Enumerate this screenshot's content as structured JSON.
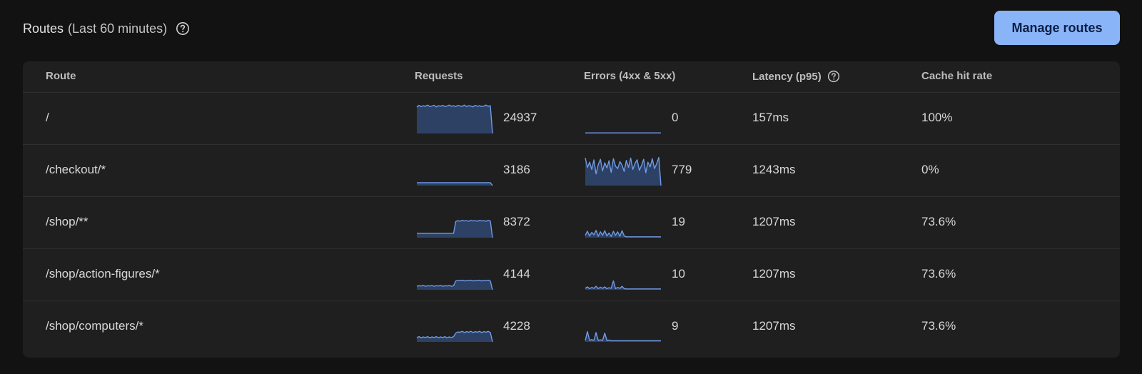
{
  "header": {
    "title": "Routes",
    "subtitle": "(Last 60 minutes)",
    "help_icon": "help-circle-icon",
    "manage_button": "Manage routes"
  },
  "colors": {
    "background": "#121212",
    "card": "#1f1f1f",
    "accent": "#8ab4f8",
    "spark_line": "#6f9be8",
    "spark_fill": "#2d4165"
  },
  "table": {
    "columns": [
      "Route",
      "Requests",
      "Errors (4xx & 5xx)",
      "Latency (p95)",
      "Cache hit rate"
    ],
    "latency_help_icon": "help-circle-icon",
    "rows": [
      {
        "route": "/",
        "requests": "24937",
        "errors": "0",
        "latency": "157ms",
        "cache_hit_rate": "100%",
        "requests_trend": [
          0.9,
          0.96,
          0.92,
          0.95,
          0.93,
          0.97,
          0.92,
          0.94,
          0.96,
          0.91,
          0.95,
          0.93,
          0.96,
          0.92,
          0.94,
          0.97,
          0.93,
          0.95,
          0.92,
          0.96,
          0.94,
          0.93,
          0.97,
          0.92,
          0.95,
          0.94,
          0.91,
          0.96,
          0.93,
          0.95,
          0.92,
          0.94,
          0.97,
          0.93,
          0.95,
          0.0
        ],
        "errors_trend": [
          0.02,
          0.02,
          0.02,
          0.02,
          0.02,
          0.02,
          0.02,
          0.02,
          0.02,
          0.02,
          0.02,
          0.02,
          0.02,
          0.02,
          0.02,
          0.02,
          0.02,
          0.02,
          0.02,
          0.02,
          0.02,
          0.02,
          0.02,
          0.02,
          0.02,
          0.02,
          0.02,
          0.02,
          0.02,
          0.02,
          0.02,
          0.02,
          0.02,
          0.02,
          0.02,
          0.02
        ]
      },
      {
        "route": "/checkout/*",
        "requests": "3186",
        "errors": "779",
        "latency": "1243ms",
        "cache_hit_rate": "0%",
        "requests_trend": [
          0.1,
          0.1,
          0.1,
          0.1,
          0.1,
          0.1,
          0.1,
          0.1,
          0.1,
          0.1,
          0.1,
          0.1,
          0.1,
          0.1,
          0.1,
          0.1,
          0.1,
          0.1,
          0.1,
          0.1,
          0.1,
          0.1,
          0.1,
          0.1,
          0.1,
          0.1,
          0.1,
          0.1,
          0.1,
          0.1,
          0.1,
          0.1,
          0.1,
          0.1,
          0.1,
          0.0
        ],
        "errors_trend": [
          0.95,
          0.62,
          0.8,
          0.55,
          0.88,
          0.4,
          0.72,
          0.9,
          0.5,
          0.78,
          0.6,
          0.85,
          0.45,
          0.92,
          0.66,
          0.58,
          0.82,
          0.7,
          0.48,
          0.86,
          0.62,
          0.94,
          0.55,
          0.76,
          0.88,
          0.52,
          0.68,
          0.9,
          0.44,
          0.8,
          0.64,
          0.92,
          0.58,
          0.74,
          0.96,
          0.0
        ]
      },
      {
        "route": "/shop/**",
        "requests": "8372",
        "errors": "19",
        "latency": "1207ms",
        "cache_hit_rate": "73.6%",
        "requests_trend": [
          0.15,
          0.15,
          0.15,
          0.15,
          0.15,
          0.15,
          0.15,
          0.15,
          0.15,
          0.15,
          0.15,
          0.15,
          0.15,
          0.15,
          0.15,
          0.15,
          0.15,
          0.15,
          0.55,
          0.58,
          0.56,
          0.59,
          0.57,
          0.58,
          0.56,
          0.59,
          0.57,
          0.58,
          0.56,
          0.59,
          0.57,
          0.58,
          0.56,
          0.59,
          0.57,
          0.0
        ],
        "errors_trend": [
          0.08,
          0.22,
          0.06,
          0.18,
          0.1,
          0.25,
          0.05,
          0.2,
          0.08,
          0.24,
          0.06,
          0.16,
          0.04,
          0.22,
          0.08,
          0.2,
          0.05,
          0.24,
          0.06,
          0.03,
          0.03,
          0.03,
          0.03,
          0.03,
          0.03,
          0.03,
          0.03,
          0.03,
          0.03,
          0.03,
          0.03,
          0.03,
          0.03,
          0.03,
          0.03,
          0.03
        ]
      },
      {
        "route": "/shop/action-figures/*",
        "requests": "4144",
        "errors": "10",
        "latency": "1207ms",
        "cache_hit_rate": "73.6%",
        "requests_trend": [
          0.12,
          0.14,
          0.13,
          0.15,
          0.12,
          0.14,
          0.13,
          0.15,
          0.12,
          0.14,
          0.13,
          0.15,
          0.12,
          0.14,
          0.13,
          0.15,
          0.12,
          0.14,
          0.3,
          0.32,
          0.31,
          0.33,
          0.3,
          0.32,
          0.31,
          0.33,
          0.3,
          0.32,
          0.31,
          0.33,
          0.3,
          0.32,
          0.31,
          0.33,
          0.3,
          0.0
        ],
        "errors_trend": [
          0.05,
          0.1,
          0.04,
          0.08,
          0.05,
          0.12,
          0.04,
          0.09,
          0.05,
          0.1,
          0.04,
          0.07,
          0.05,
          0.3,
          0.04,
          0.08,
          0.05,
          0.12,
          0.04,
          0.03,
          0.03,
          0.03,
          0.03,
          0.03,
          0.03,
          0.03,
          0.03,
          0.03,
          0.03,
          0.03,
          0.03,
          0.03,
          0.03,
          0.03,
          0.03,
          0.03
        ]
      },
      {
        "route": "/shop/computers/*",
        "requests": "4228",
        "errors": "9",
        "latency": "1207ms",
        "cache_hit_rate": "73.6%",
        "requests_trend": [
          0.15,
          0.18,
          0.14,
          0.17,
          0.15,
          0.18,
          0.14,
          0.17,
          0.15,
          0.18,
          0.14,
          0.17,
          0.15,
          0.18,
          0.14,
          0.17,
          0.15,
          0.18,
          0.3,
          0.34,
          0.33,
          0.36,
          0.32,
          0.35,
          0.33,
          0.36,
          0.32,
          0.35,
          0.33,
          0.36,
          0.32,
          0.35,
          0.33,
          0.36,
          0.32,
          0.0
        ],
        "errors_trend": [
          0.05,
          0.35,
          0.05,
          0.08,
          0.05,
          0.32,
          0.05,
          0.07,
          0.05,
          0.3,
          0.05,
          0.06,
          0.04,
          0.04,
          0.04,
          0.04,
          0.04,
          0.04,
          0.04,
          0.04,
          0.04,
          0.04,
          0.04,
          0.04,
          0.04,
          0.04,
          0.04,
          0.04,
          0.04,
          0.04,
          0.04,
          0.04,
          0.04,
          0.04,
          0.04,
          0.04
        ]
      }
    ]
  }
}
